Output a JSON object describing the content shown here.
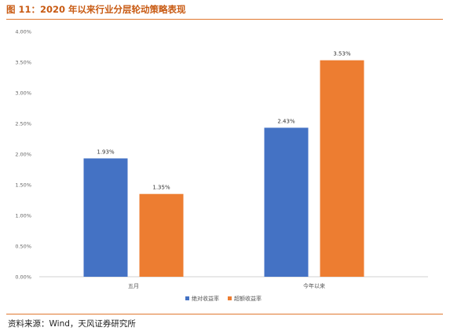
{
  "figure": {
    "title": "图 11：2020 年以来行业分层轮动策略表现",
    "source": "资料来源：Wind，天风证券研究所"
  },
  "chart_data": {
    "type": "bar",
    "categories": [
      "五月",
      "今年以来"
    ],
    "series": [
      {
        "name": "绝对收益率",
        "values": [
          1.93,
          2.43
        ],
        "labels": [
          "1.93%",
          "2.43%"
        ],
        "color": "#4472c4"
      },
      {
        "name": "超额收益率",
        "values": [
          1.35,
          3.53
        ],
        "labels": [
          "1.35%",
          "3.53%"
        ],
        "color": "#ed7d31"
      }
    ],
    "yticks": [
      "0.00%",
      "0.50%",
      "1.00%",
      "1.50%",
      "2.00%",
      "2.50%",
      "3.00%",
      "3.50%",
      "4.00%"
    ],
    "ylim": [
      0,
      4
    ],
    "legend_position": "bottom",
    "grid": false
  }
}
